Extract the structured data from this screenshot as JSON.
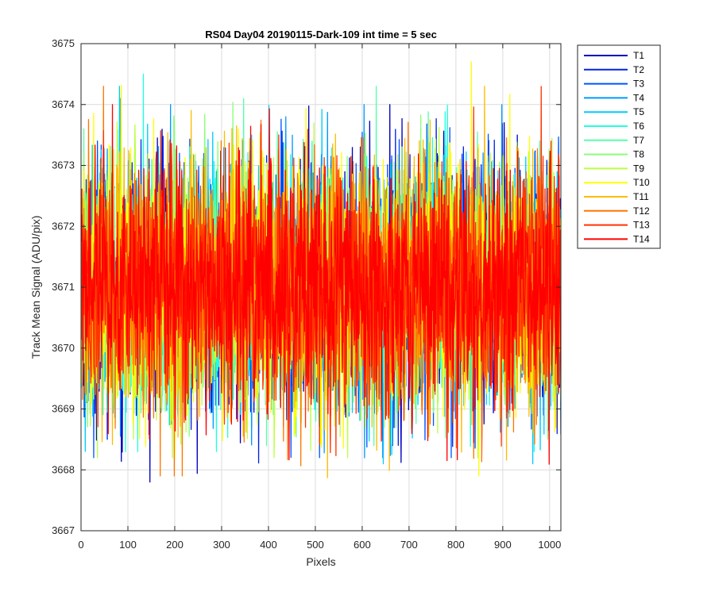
{
  "chart_data": {
    "type": "line",
    "title": "RS04 Day04 20190115-Dark-109 int time = 5 sec",
    "xlabel": "Pixels",
    "ylabel": "Track Mean Signal (ADU/pix)",
    "xlim": [
      0,
      1024
    ],
    "ylim": [
      3667,
      3675
    ],
    "xticks": [
      0,
      100,
      200,
      300,
      400,
      500,
      600,
      700,
      800,
      900,
      1000
    ],
    "yticks": [
      3667,
      3668,
      3669,
      3670,
      3671,
      3672,
      3673,
      3674,
      3675
    ],
    "grid": true,
    "legend_position": "outside-top-right",
    "n_points": 1024,
    "mean": 3671,
    "series": [
      {
        "name": "T1",
        "color": "#0000bf",
        "min": 3667.8,
        "max": 3674.2
      },
      {
        "name": "T2",
        "color": "#0022e6",
        "min": 3668.0,
        "max": 3674.0
      },
      {
        "name": "T3",
        "color": "#0055ff",
        "min": 3668.2,
        "max": 3674.1
      },
      {
        "name": "T4",
        "color": "#0099ff",
        "min": 3667.9,
        "max": 3674.0
      },
      {
        "name": "T5",
        "color": "#00ccff",
        "min": 3668.1,
        "max": 3674.3
      },
      {
        "name": "T6",
        "color": "#22ffdd",
        "min": 3668.3,
        "max": 3674.5
      },
      {
        "name": "T7",
        "color": "#55ffaa",
        "min": 3668.4,
        "max": 3674.3
      },
      {
        "name": "T8",
        "color": "#88ff77",
        "min": 3668.3,
        "max": 3674.4
      },
      {
        "name": "T9",
        "color": "#bbff44",
        "min": 3668.2,
        "max": 3674.5
      },
      {
        "name": "T10",
        "color": "#ffff00",
        "min": 3667.9,
        "max": 3674.7
      },
      {
        "name": "T11",
        "color": "#ffbb00",
        "min": 3667.8,
        "max": 3674.3
      },
      {
        "name": "T12",
        "color": "#ff7700",
        "min": 3667.9,
        "max": 3674.3
      },
      {
        "name": "T13",
        "color": "#ff3300",
        "min": 3668.1,
        "max": 3674.4
      },
      {
        "name": "T14",
        "color": "#ff0000",
        "min": 3667.7,
        "max": 3674.0
      }
    ]
  }
}
